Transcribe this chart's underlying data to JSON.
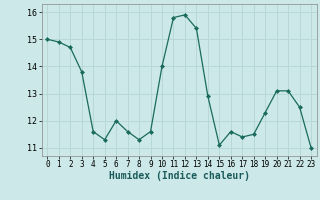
{
  "x": [
    0,
    1,
    2,
    3,
    4,
    5,
    6,
    7,
    8,
    9,
    10,
    11,
    12,
    13,
    14,
    15,
    16,
    17,
    18,
    19,
    20,
    21,
    22,
    23
  ],
  "y": [
    15.0,
    14.9,
    14.7,
    13.8,
    11.6,
    11.3,
    12.0,
    11.6,
    11.3,
    11.6,
    14.0,
    15.8,
    15.9,
    15.4,
    12.9,
    11.1,
    11.6,
    11.4,
    11.5,
    12.3,
    13.1,
    13.1,
    12.5,
    11.0
  ],
  "line_color": "#1a6b5e",
  "marker": "D",
  "marker_size": 2,
  "bg_color": "#cce8e8",
  "grid_color": "#b8d8d8",
  "xlabel": "Humidex (Indice chaleur)",
  "ylim": [
    10.7,
    16.3
  ],
  "xlim": [
    -0.5,
    23.5
  ],
  "yticks": [
    11,
    12,
    13,
    14,
    15,
    16
  ],
  "xticks": [
    0,
    1,
    2,
    3,
    4,
    5,
    6,
    7,
    8,
    9,
    10,
    11,
    12,
    13,
    14,
    15,
    16,
    17,
    18,
    19,
    20,
    21,
    22,
    23
  ]
}
